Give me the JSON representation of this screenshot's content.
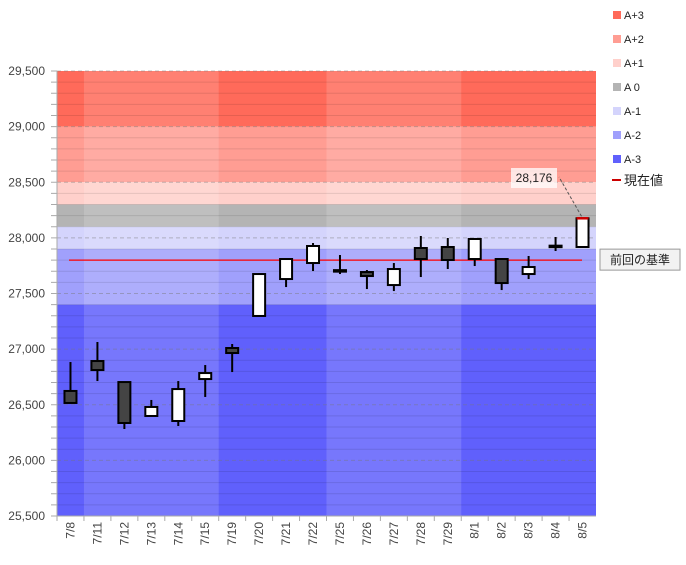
{
  "chart_data": {
    "type": "candlestick",
    "title": "",
    "xlabel": "",
    "ylabel": "",
    "ylim": [
      25500,
      29500
    ],
    "yticks": [
      "25,500",
      "26,000",
      "26,500",
      "27,000",
      "27,500",
      "28,000",
      "28,500",
      "29,000",
      "29,500"
    ],
    "ytick_values": [
      25500,
      26000,
      26500,
      27000,
      27500,
      28000,
      28500,
      29000,
      29500
    ],
    "grid": "horizontal minor every 100, dashed major every 500",
    "categories": [
      "7/8",
      "7/11",
      "7/12",
      "7/13",
      "7/14",
      "7/15",
      "7/19",
      "7/20",
      "7/21",
      "7/22",
      "7/25",
      "7/26",
      "7/27",
      "7/28",
      "7/29",
      "8/1",
      "8/2",
      "8/3",
      "8/4",
      "8/5"
    ],
    "week_groups": [
      [
        0,
        0
      ],
      [
        1,
        5
      ],
      [
        6,
        9
      ],
      [
        10,
        14
      ],
      [
        15,
        19
      ]
    ],
    "candles": [
      {
        "open": 26624,
        "high": 26884,
        "low": 26516,
        "close": 26516
      },
      {
        "open": 26893,
        "high": 27064,
        "low": 26713,
        "close": 26812
      },
      {
        "open": 26704,
        "high": 26704,
        "low": 26282,
        "close": 26336
      },
      {
        "open": 26399,
        "high": 26543,
        "low": 26399,
        "close": 26480
      },
      {
        "open": 26354,
        "high": 26713,
        "low": 26309,
        "close": 26641
      },
      {
        "open": 26731,
        "high": 26857,
        "low": 26570,
        "close": 26785
      },
      {
        "open": 27010,
        "high": 27046,
        "low": 26794,
        "close": 26965
      },
      {
        "open": 27298,
        "high": 27684,
        "low": 27298,
        "close": 27675
      },
      {
        "open": 27630,
        "high": 27810,
        "low": 27558,
        "close": 27810
      },
      {
        "open": 27774,
        "high": 27954,
        "low": 27702,
        "close": 27927
      },
      {
        "open": 27710,
        "high": 27846,
        "low": 27675,
        "close": 27698
      },
      {
        "open": 27693,
        "high": 27711,
        "low": 27540,
        "close": 27657
      },
      {
        "open": 27576,
        "high": 27774,
        "low": 27522,
        "close": 27720
      },
      {
        "open": 27909,
        "high": 28017,
        "low": 27648,
        "close": 27810
      },
      {
        "open": 27918,
        "high": 27999,
        "low": 27720,
        "close": 27801
      },
      {
        "open": 27810,
        "high": 27990,
        "low": 27747,
        "close": 27990
      },
      {
        "open": 27810,
        "high": 27819,
        "low": 27531,
        "close": 27594
      },
      {
        "open": 27675,
        "high": 27837,
        "low": 27630,
        "close": 27738
      },
      {
        "open": 27927,
        "high": 28008,
        "low": 27882,
        "close": 27930
      },
      {
        "open": 27918,
        "high": 28176,
        "low": 27918,
        "close": 28176
      }
    ],
    "bands": [
      {
        "name": "A+3",
        "from": 29000,
        "to": 29500,
        "color": "#ff6a5a"
      },
      {
        "name": "A+2",
        "from": 28500,
        "to": 29000,
        "color": "#ff9d93"
      },
      {
        "name": "A+1",
        "from": 28300,
        "to": 28500,
        "color": "#ffd0cb"
      },
      {
        "name": "A 0",
        "from": 28100,
        "to": 28300,
        "color": "#b4b4b4"
      },
      {
        "name": "A-1",
        "from": 27900,
        "to": 28100,
        "color": "#d4d4fc"
      },
      {
        "name": "A-2",
        "from": 27400,
        "to": 27900,
        "color": "#a0a0fc"
      },
      {
        "name": "A-3",
        "from": 25500,
        "to": 27400,
        "color": "#6060fc"
      }
    ],
    "current_value_legend": "現在値",
    "current_value_color": "#cc0000",
    "current_value_label": "28,176",
    "baseline": {
      "value": 27800,
      "label": "前回の基準",
      "color": "#ff0000"
    },
    "up_color": "#ffffff",
    "down_color": "#444444",
    "legend_position": "right"
  }
}
